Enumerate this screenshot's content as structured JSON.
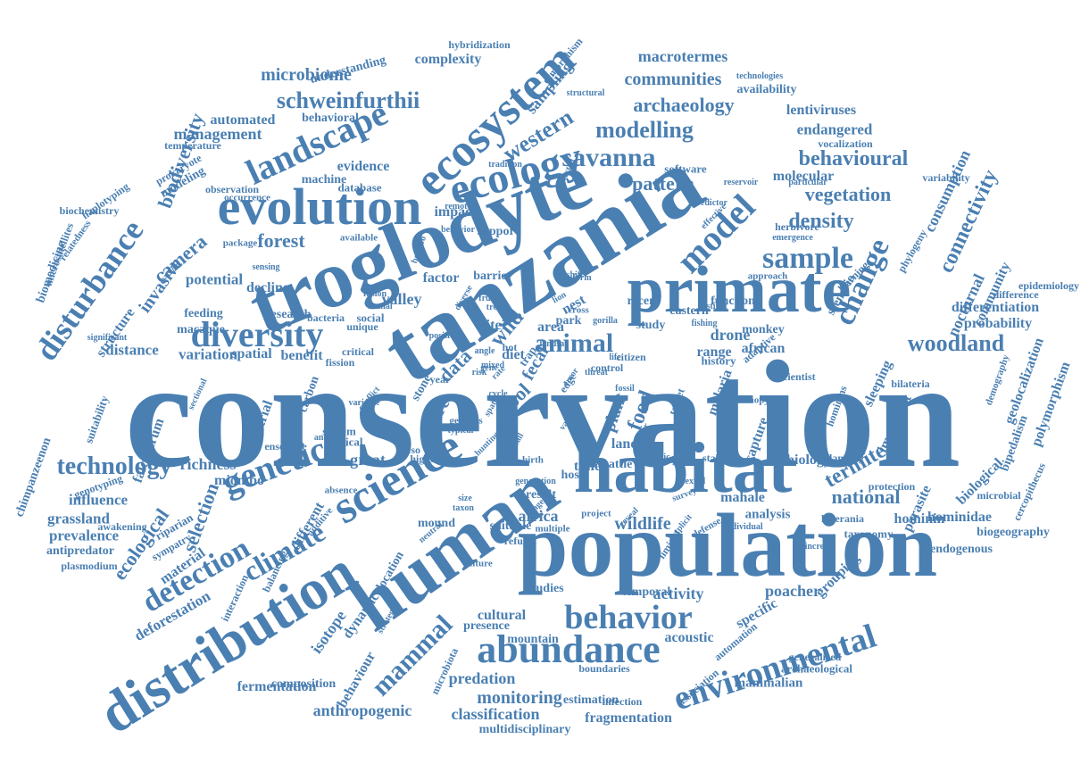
{
  "word_color": "#4a7fb2",
  "background": "#ffffff",
  "words": [
    "conservation",
    "tanzania",
    "troglodyte",
    "population",
    "human",
    "habitat",
    "primate",
    "distribution",
    "evolution",
    "ecosystem",
    "science",
    "landscape",
    "ecology",
    "diversity",
    "genetic",
    "environmental",
    "abundance",
    "behavior",
    "model",
    "change",
    "disturbance",
    "sample",
    "animal",
    "savanna",
    "schweinfurthii",
    "technology",
    "woodland",
    "behavioural",
    "modelling",
    "archaeology",
    "density",
    "vegetation",
    "connectivity",
    "detection",
    "climate",
    "termite",
    "mammal",
    "western",
    "pattern",
    "forest",
    "communities",
    "macrotermes",
    "microbiome",
    "biodiversity",
    "selection",
    "ecological",
    "national",
    "wildlife",
    "monitoring",
    "classification",
    "anthropogenic",
    "predation",
    "africa",
    "great",
    "data",
    "wild",
    "tool",
    "drone",
    "invasive",
    "camera",
    "management",
    "automated",
    "endangered",
    "lentiviruses",
    "nocturnal",
    "community",
    "probability",
    "differentiation",
    "parasite",
    "hominidae",
    "hominin",
    "biological",
    "analysis",
    "activity",
    "specific",
    "poacher",
    "grouping",
    "fragmentation",
    "estimation",
    "multidisciplinary",
    "mountain",
    "cultural",
    "presence",
    "isotope",
    "dynamic",
    "behaviour",
    "fermentation",
    "composition",
    "deforestation",
    "material",
    "grassland",
    "prevalence",
    "antipredator",
    "plasmodium",
    "influence",
    "falciparum",
    "genotyping",
    "chimpanzeenon",
    "biomedicine",
    "microsatellites",
    "biochemistry",
    "haplotyping",
    "temperature",
    "modeling",
    "prokaryote",
    "potential",
    "structure",
    "distance",
    "variation",
    "spatial",
    "benefit",
    "feeding",
    "macaque",
    "decline",
    "valley",
    "factor",
    "impact",
    "barrier",
    "support",
    "research",
    "evidence",
    "machine",
    "database",
    "software",
    "molecular",
    "consumption",
    "sampling",
    "complexity",
    "hybridization",
    "dimorphism",
    "understanding",
    "behavioral",
    "availability",
    "technologies",
    "vocalization",
    "variability",
    "epidemiology",
    "difference",
    "geolocalization",
    "polymorphism",
    "bipedalism",
    "biogeography",
    "cercopithecus",
    "sleeping",
    "capture",
    "malaria",
    "biology",
    "mahale",
    "important",
    "endogenous",
    "taxonomy",
    "laverania",
    "archaeological",
    "generalized",
    "mammalian",
    "acoustic",
    "automation",
    "association",
    "infection",
    "boundaries",
    "studies",
    "temporal",
    "terrestrial",
    "carbon",
    "richness",
    "miombo",
    "riparian",
    "sympatry",
    "awakening",
    "suitability",
    "stone",
    "more",
    "site",
    "area",
    "study",
    "range",
    "monkey",
    "african",
    "recent",
    "function",
    "approach",
    "canopy",
    "plant",
    "food",
    "land",
    "cattle",
    "time",
    "host",
    "image",
    "result",
    "suitable",
    "refugia",
    "multiple",
    "project",
    "culture",
    "microbiota",
    "strategies",
    "location",
    "interaction",
    "balancing",
    "different",
    "mound",
    "neutral",
    "meso",
    "nest",
    "park",
    "distinct",
    "herbivore",
    "emergence",
    "phylogeny",
    "scenario",
    "learning",
    "scientist",
    "hominins",
    "target",
    "protection",
    "microbial",
    "reservoir",
    "effective",
    "predictor",
    "protected",
    "tradition",
    "observation",
    "occurrence",
    "package",
    "sensing",
    "available",
    "critical",
    "fission",
    "social",
    "unique",
    "bacteria",
    "significant",
    "sectional",
    "system",
    "conflict",
    "ensemble",
    "higher",
    "absence",
    "additive",
    "fecal",
    "year",
    "diet",
    "trap",
    "edge",
    "error",
    "cross",
    "gorilla",
    "eastern",
    "fishing",
    "history",
    "adaptive",
    "demography",
    "bilateria",
    "increase",
    "individual",
    "defense",
    "explicit",
    "limited",
    "survey",
    "planning",
    "particular",
    "structural",
    "faunal",
    "fusion",
    "analyze",
    "tropical",
    "variable",
    "generation",
    "remote",
    "behavior",
    "genetics",
    "typical",
    "mixed",
    "positive",
    "hot",
    "rainfall",
    "size",
    "birth",
    "fruit",
    "cycle",
    "threat",
    "control",
    "citizen",
    "topic",
    "sexual",
    "stable",
    "reveal",
    "driver",
    "fossil",
    "bonobo",
    "spatio",
    "range",
    "taxon",
    "landsat",
    "value",
    "hunting",
    "tree",
    "lion",
    "shift",
    "angle",
    "gene",
    "risk",
    "rate",
    "life",
    "form",
    "diverse",
    "relatedness",
    "regional",
    "wide"
  ]
}
